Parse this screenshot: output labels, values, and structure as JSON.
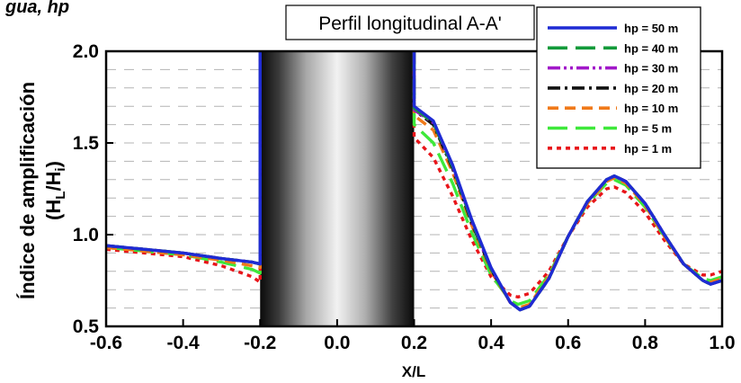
{
  "header_fragment": "gua, hp",
  "chart_data": {
    "type": "line",
    "title": "Perfil longitudinal A-A'",
    "xlabel": "X/L",
    "ylabel_line1": "Índice de amplificación",
    "ylabel_line2": "(H",
    "ylabel_sub1": "L",
    "ylabel_slash": "/H",
    "ylabel_sub2": "i",
    "ylabel_close": ")",
    "xlim": [
      -0.6,
      1.0
    ],
    "ylim": [
      0.5,
      2.0
    ],
    "xticks": [
      "-0.6",
      "-0.4",
      "-0.2",
      "0.0",
      "0.2",
      "0.4",
      "0.6",
      "0.8",
      "1.0"
    ],
    "yticks": [
      "0.5",
      "1.0",
      "1.5",
      "2.0"
    ],
    "grid": "horizontal dashed",
    "legend_position": "top-right",
    "obstacle_range": [
      -0.2,
      0.2
    ],
    "series": [
      {
        "name": "hp = 50 m",
        "color": "#1f2bd4",
        "dash": "",
        "points": [
          [
            -0.6,
            0.94
          ],
          [
            -0.5,
            0.92
          ],
          [
            -0.4,
            0.9
          ],
          [
            -0.3,
            0.87
          ],
          [
            -0.22,
            0.85
          ],
          [
            -0.2,
            0.84
          ],
          [
            0.2,
            1.7
          ],
          [
            0.25,
            1.62
          ],
          [
            0.3,
            1.38
          ],
          [
            0.35,
            1.08
          ],
          [
            0.4,
            0.82
          ],
          [
            0.45,
            0.63
          ],
          [
            0.475,
            0.59
          ],
          [
            0.5,
            0.61
          ],
          [
            0.55,
            0.76
          ],
          [
            0.6,
            0.99
          ],
          [
            0.65,
            1.18
          ],
          [
            0.7,
            1.3
          ],
          [
            0.72,
            1.32
          ],
          [
            0.75,
            1.29
          ],
          [
            0.8,
            1.17
          ],
          [
            0.85,
            1.0
          ],
          [
            0.9,
            0.84
          ],
          [
            0.95,
            0.75
          ],
          [
            0.97,
            0.73
          ],
          [
            1.0,
            0.75
          ]
        ]
      },
      {
        "name": "hp = 40 m",
        "color": "#129a3a",
        "dash": "22 9",
        "points": [
          [
            -0.6,
            0.94
          ],
          [
            -0.5,
            0.92
          ],
          [
            -0.4,
            0.9
          ],
          [
            -0.3,
            0.87
          ],
          [
            -0.22,
            0.85
          ],
          [
            -0.2,
            0.84
          ],
          [
            0.2,
            1.69
          ],
          [
            0.25,
            1.61
          ],
          [
            0.3,
            1.37
          ],
          [
            0.35,
            1.07
          ],
          [
            0.4,
            0.81
          ],
          [
            0.45,
            0.63
          ],
          [
            0.475,
            0.59
          ],
          [
            0.5,
            0.61
          ],
          [
            0.55,
            0.76
          ],
          [
            0.6,
            0.99
          ],
          [
            0.65,
            1.18
          ],
          [
            0.7,
            1.3
          ],
          [
            0.72,
            1.32
          ],
          [
            0.75,
            1.29
          ],
          [
            0.8,
            1.17
          ],
          [
            0.85,
            1.0
          ],
          [
            0.9,
            0.84
          ],
          [
            0.95,
            0.75
          ],
          [
            0.97,
            0.73
          ],
          [
            1.0,
            0.75
          ]
        ]
      },
      {
        "name": "hp = 30 m",
        "color": "#a118c9",
        "dash": "14 4 3 4 3 4",
        "points": [
          [
            -0.6,
            0.94
          ],
          [
            -0.5,
            0.92
          ],
          [
            -0.4,
            0.9
          ],
          [
            -0.3,
            0.87
          ],
          [
            -0.22,
            0.85
          ],
          [
            -0.2,
            0.84
          ],
          [
            0.2,
            1.68
          ],
          [
            0.25,
            1.61
          ],
          [
            0.3,
            1.37
          ],
          [
            0.35,
            1.07
          ],
          [
            0.4,
            0.81
          ],
          [
            0.45,
            0.63
          ],
          [
            0.475,
            0.59
          ],
          [
            0.5,
            0.61
          ],
          [
            0.55,
            0.76
          ],
          [
            0.6,
            0.99
          ],
          [
            0.65,
            1.18
          ],
          [
            0.7,
            1.3
          ],
          [
            0.72,
            1.32
          ],
          [
            0.75,
            1.29
          ],
          [
            0.8,
            1.17
          ],
          [
            0.85,
            1.0
          ],
          [
            0.9,
            0.84
          ],
          [
            0.95,
            0.75
          ],
          [
            0.97,
            0.73
          ],
          [
            1.0,
            0.75
          ]
        ]
      },
      {
        "name": "hp = 20 m",
        "color": "#111111",
        "dash": "14 5 3 5",
        "points": [
          [
            -0.6,
            0.94
          ],
          [
            -0.5,
            0.92
          ],
          [
            -0.4,
            0.9
          ],
          [
            -0.3,
            0.87
          ],
          [
            -0.22,
            0.85
          ],
          [
            -0.2,
            0.84
          ],
          [
            0.2,
            1.68
          ],
          [
            0.25,
            1.6
          ],
          [
            0.3,
            1.36
          ],
          [
            0.35,
            1.06
          ],
          [
            0.4,
            0.81
          ],
          [
            0.45,
            0.63
          ],
          [
            0.475,
            0.59
          ],
          [
            0.5,
            0.61
          ],
          [
            0.55,
            0.76
          ],
          [
            0.6,
            0.99
          ],
          [
            0.65,
            1.18
          ],
          [
            0.7,
            1.3
          ],
          [
            0.72,
            1.32
          ],
          [
            0.75,
            1.29
          ],
          [
            0.8,
            1.17
          ],
          [
            0.85,
            1.0
          ],
          [
            0.9,
            0.84
          ],
          [
            0.95,
            0.75
          ],
          [
            0.97,
            0.73
          ],
          [
            1.0,
            0.75
          ]
        ]
      },
      {
        "name": "hp = 10 m",
        "color": "#f07a1a",
        "dash": "12 7",
        "points": [
          [
            -0.6,
            0.93
          ],
          [
            -0.5,
            0.91
          ],
          [
            -0.4,
            0.89
          ],
          [
            -0.3,
            0.86
          ],
          [
            -0.22,
            0.83
          ],
          [
            -0.2,
            0.82
          ],
          [
            0.2,
            1.65
          ],
          [
            0.25,
            1.57
          ],
          [
            0.3,
            1.34
          ],
          [
            0.35,
            1.05
          ],
          [
            0.4,
            0.8
          ],
          [
            0.45,
            0.63
          ],
          [
            0.47,
            0.6
          ],
          [
            0.5,
            0.62
          ],
          [
            0.55,
            0.77
          ],
          [
            0.6,
            0.99
          ],
          [
            0.65,
            1.17
          ],
          [
            0.7,
            1.29
          ],
          [
            0.72,
            1.31
          ],
          [
            0.75,
            1.28
          ],
          [
            0.8,
            1.16
          ],
          [
            0.85,
            0.99
          ],
          [
            0.9,
            0.84
          ],
          [
            0.95,
            0.75
          ],
          [
            0.97,
            0.74
          ],
          [
            1.0,
            0.76
          ]
        ]
      },
      {
        "name": "hp = 5 m",
        "color": "#3ee83a",
        "dash": "22 9",
        "points": [
          [
            -0.6,
            0.93
          ],
          [
            -0.5,
            0.91
          ],
          [
            -0.4,
            0.89
          ],
          [
            -0.3,
            0.85
          ],
          [
            -0.22,
            0.81
          ],
          [
            -0.2,
            0.79
          ],
          [
            0.2,
            1.6
          ],
          [
            0.25,
            1.5
          ],
          [
            0.3,
            1.28
          ],
          [
            0.35,
            1.01
          ],
          [
            0.4,
            0.78
          ],
          [
            0.45,
            0.64
          ],
          [
            0.47,
            0.62
          ],
          [
            0.5,
            0.64
          ],
          [
            0.55,
            0.78
          ],
          [
            0.6,
            0.99
          ],
          [
            0.65,
            1.17
          ],
          [
            0.7,
            1.28
          ],
          [
            0.72,
            1.3
          ],
          [
            0.75,
            1.27
          ],
          [
            0.8,
            1.15
          ],
          [
            0.85,
            0.99
          ],
          [
            0.9,
            0.84
          ],
          [
            0.95,
            0.76
          ],
          [
            0.97,
            0.75
          ],
          [
            1.0,
            0.77
          ]
        ]
      },
      {
        "name": "hp = 1 m",
        "color": "#e8151a",
        "dash": "5 5",
        "points": [
          [
            -0.6,
            0.92
          ],
          [
            -0.5,
            0.9
          ],
          [
            -0.4,
            0.88
          ],
          [
            -0.3,
            0.83
          ],
          [
            -0.22,
            0.77
          ],
          [
            -0.2,
            0.74
          ],
          [
            0.2,
            1.53
          ],
          [
            0.25,
            1.42
          ],
          [
            0.3,
            1.21
          ],
          [
            0.35,
            0.97
          ],
          [
            0.4,
            0.77
          ],
          [
            0.45,
            0.67
          ],
          [
            0.47,
            0.66
          ],
          [
            0.5,
            0.68
          ],
          [
            0.55,
            0.8
          ],
          [
            0.6,
            0.99
          ],
          [
            0.65,
            1.15
          ],
          [
            0.7,
            1.25
          ],
          [
            0.72,
            1.26
          ],
          [
            0.75,
            1.23
          ],
          [
            0.8,
            1.12
          ],
          [
            0.85,
            0.97
          ],
          [
            0.9,
            0.84
          ],
          [
            0.95,
            0.78
          ],
          [
            0.97,
            0.78
          ],
          [
            1.0,
            0.8
          ]
        ]
      }
    ]
  }
}
